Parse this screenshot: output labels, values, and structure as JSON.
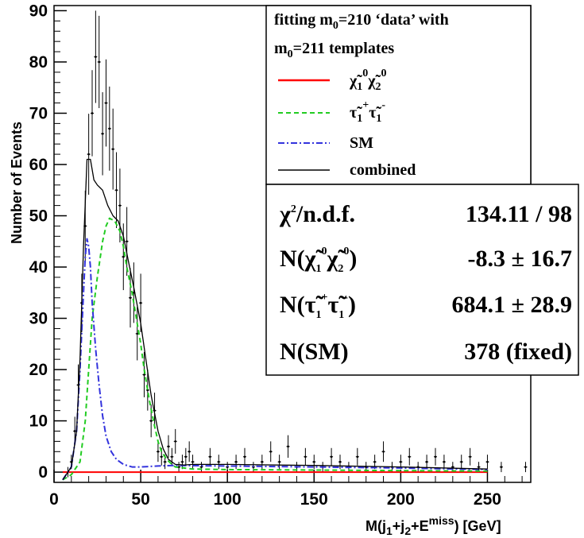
{
  "chart_data": {
    "type": "line",
    "xlabel": "M(j1+j2+E^miss) [GeV]",
    "ylabel": "Number of Events",
    "xlim": [
      0,
      275
    ],
    "ylim": [
      -2,
      91
    ],
    "xticks": [
      "0",
      "50",
      "100",
      "150",
      "200",
      "250"
    ],
    "yticks": [
      "0",
      "10",
      "20",
      "30",
      "40",
      "50",
      "60",
      "70",
      "80",
      "90"
    ],
    "legend": {
      "title_line1": "fitting m0=210 ‘data’ with",
      "title_line2": "m0=211 templates",
      "entries": [
        "χ̃1⁰χ̃2⁰",
        "τ̃1⁺τ̃1⁻",
        "SM",
        "combined"
      ]
    },
    "stats": [
      {
        "label": "χ²/n.d.f.",
        "value": "134.11 / 98"
      },
      {
        "label": "N(χ̃1⁰χ̃2⁰)",
        "value": "-8.3 ± 16.7"
      },
      {
        "label": "N(τ̃1⁺τ̃1⁻)",
        "value": "684.1 ± 28.9"
      },
      {
        "label": "N(SM)",
        "value": "378 (fixed)"
      }
    ],
    "series": [
      {
        "style": "solid",
        "color": "#ff0000",
        "x": [
          5,
          50,
          100,
          150,
          200,
          250
        ],
        "y": [
          0,
          0,
          0,
          0,
          0,
          0
        ]
      },
      {
        "style": "dashed",
        "color": "#22cc22",
        "x": [
          5,
          10,
          15,
          18,
          20,
          22,
          25,
          28,
          30,
          32,
          35,
          38,
          40,
          42,
          45,
          48,
          50,
          52,
          55,
          58,
          60,
          62,
          65,
          68,
          70,
          75,
          80,
          100,
          150,
          200,
          250
        ],
        "y": [
          -1.5,
          -0.5,
          2,
          10,
          20,
          30,
          38,
          45,
          48,
          49.5,
          49,
          47,
          44,
          40,
          35,
          29,
          25,
          20,
          14,
          9,
          6,
          4,
          2.5,
          1.5,
          1,
          0.8,
          0.6,
          0.5,
          0.4,
          0.3,
          0.2
        ]
      },
      {
        "style": "dashdot",
        "color": "#3333dd",
        "x": [
          5,
          10,
          13,
          15,
          17,
          18,
          19,
          20,
          21,
          22,
          24,
          26,
          28,
          30,
          33,
          36,
          40,
          45,
          50,
          60,
          70,
          100,
          150,
          200,
          250
        ],
        "y": [
          -1.5,
          1,
          8,
          20,
          35,
          42,
          45.5,
          44,
          40,
          33,
          24,
          17,
          11,
          7,
          4,
          2.5,
          1.5,
          1,
          1,
          1.2,
          1.3,
          1.2,
          1,
          0.8,
          0.5
        ]
      },
      {
        "style": "solid",
        "color": "#000000",
        "x": [
          5,
          10,
          13,
          15,
          17,
          19,
          21,
          23,
          25,
          28,
          31,
          34,
          37,
          40,
          43,
          46,
          50,
          53,
          56,
          60,
          63,
          66,
          70,
          75,
          80,
          100,
          150,
          200,
          250
        ],
        "y": [
          -1.5,
          1,
          8,
          22,
          44,
          61,
          61,
          57,
          56,
          55,
          52,
          50,
          49,
          46,
          41,
          36,
          29,
          22,
          15,
          8,
          4.5,
          2.5,
          1.5,
          1.4,
          1.5,
          1.5,
          1.3,
          1,
          0.6
        ]
      }
    ],
    "points": {
      "x": [
        8,
        10,
        12,
        14,
        16,
        18,
        20,
        22,
        24,
        26,
        28,
        30,
        32,
        34,
        36,
        38,
        40,
        42,
        44,
        46,
        48,
        50,
        52,
        54,
        56,
        58,
        60,
        62,
        64,
        66,
        68,
        70,
        72,
        74,
        76,
        78,
        80,
        85,
        90,
        95,
        100,
        105,
        110,
        115,
        120,
        125,
        130,
        135,
        140,
        145,
        150,
        155,
        160,
        165,
        170,
        175,
        180,
        185,
        190,
        195,
        200,
        205,
        210,
        215,
        220,
        225,
        230,
        235,
        240,
        245,
        250,
        258,
        272
      ],
      "y": [
        0,
        2,
        8,
        17,
        33,
        48,
        62,
        70,
        81,
        80,
        66,
        72,
        67,
        63,
        55,
        52,
        42,
        45,
        34,
        35,
        27,
        33,
        19,
        16,
        10,
        12,
        4,
        3,
        2,
        5,
        3,
        6,
        1,
        2,
        3,
        4,
        2,
        1,
        3,
        2,
        1,
        2,
        3,
        1,
        2,
        4,
        2,
        5,
        1,
        3,
        2,
        1,
        3,
        2,
        1,
        3,
        1,
        2,
        4,
        1,
        2,
        3,
        1,
        2,
        3,
        2,
        1,
        2,
        3,
        1,
        2,
        1,
        1
      ],
      "err": [
        1,
        1.4,
        2.8,
        4,
        5.7,
        6.9,
        7.9,
        8.4,
        9,
        9,
        8.1,
        8.5,
        8.2,
        7.9,
        7.4,
        7.2,
        6.5,
        6.7,
        5.8,
        5.9,
        5.2,
        5.7,
        4.4,
        4,
        3.2,
        3.5,
        2,
        1.7,
        1.4,
        2.2,
        1.7,
        2.4,
        1,
        1.4,
        1.7,
        2,
        1.4,
        1,
        1.7,
        1.4,
        1,
        1.4,
        1.7,
        1,
        1.4,
        2,
        1.4,
        2.2,
        1,
        1.7,
        1.4,
        1,
        1.7,
        1.4,
        1,
        1.7,
        1,
        1.4,
        2,
        1,
        1.4,
        1.7,
        1,
        1.4,
        1.7,
        1.4,
        1,
        1.4,
        1.7,
        1,
        1.4,
        1,
        1
      ]
    }
  }
}
